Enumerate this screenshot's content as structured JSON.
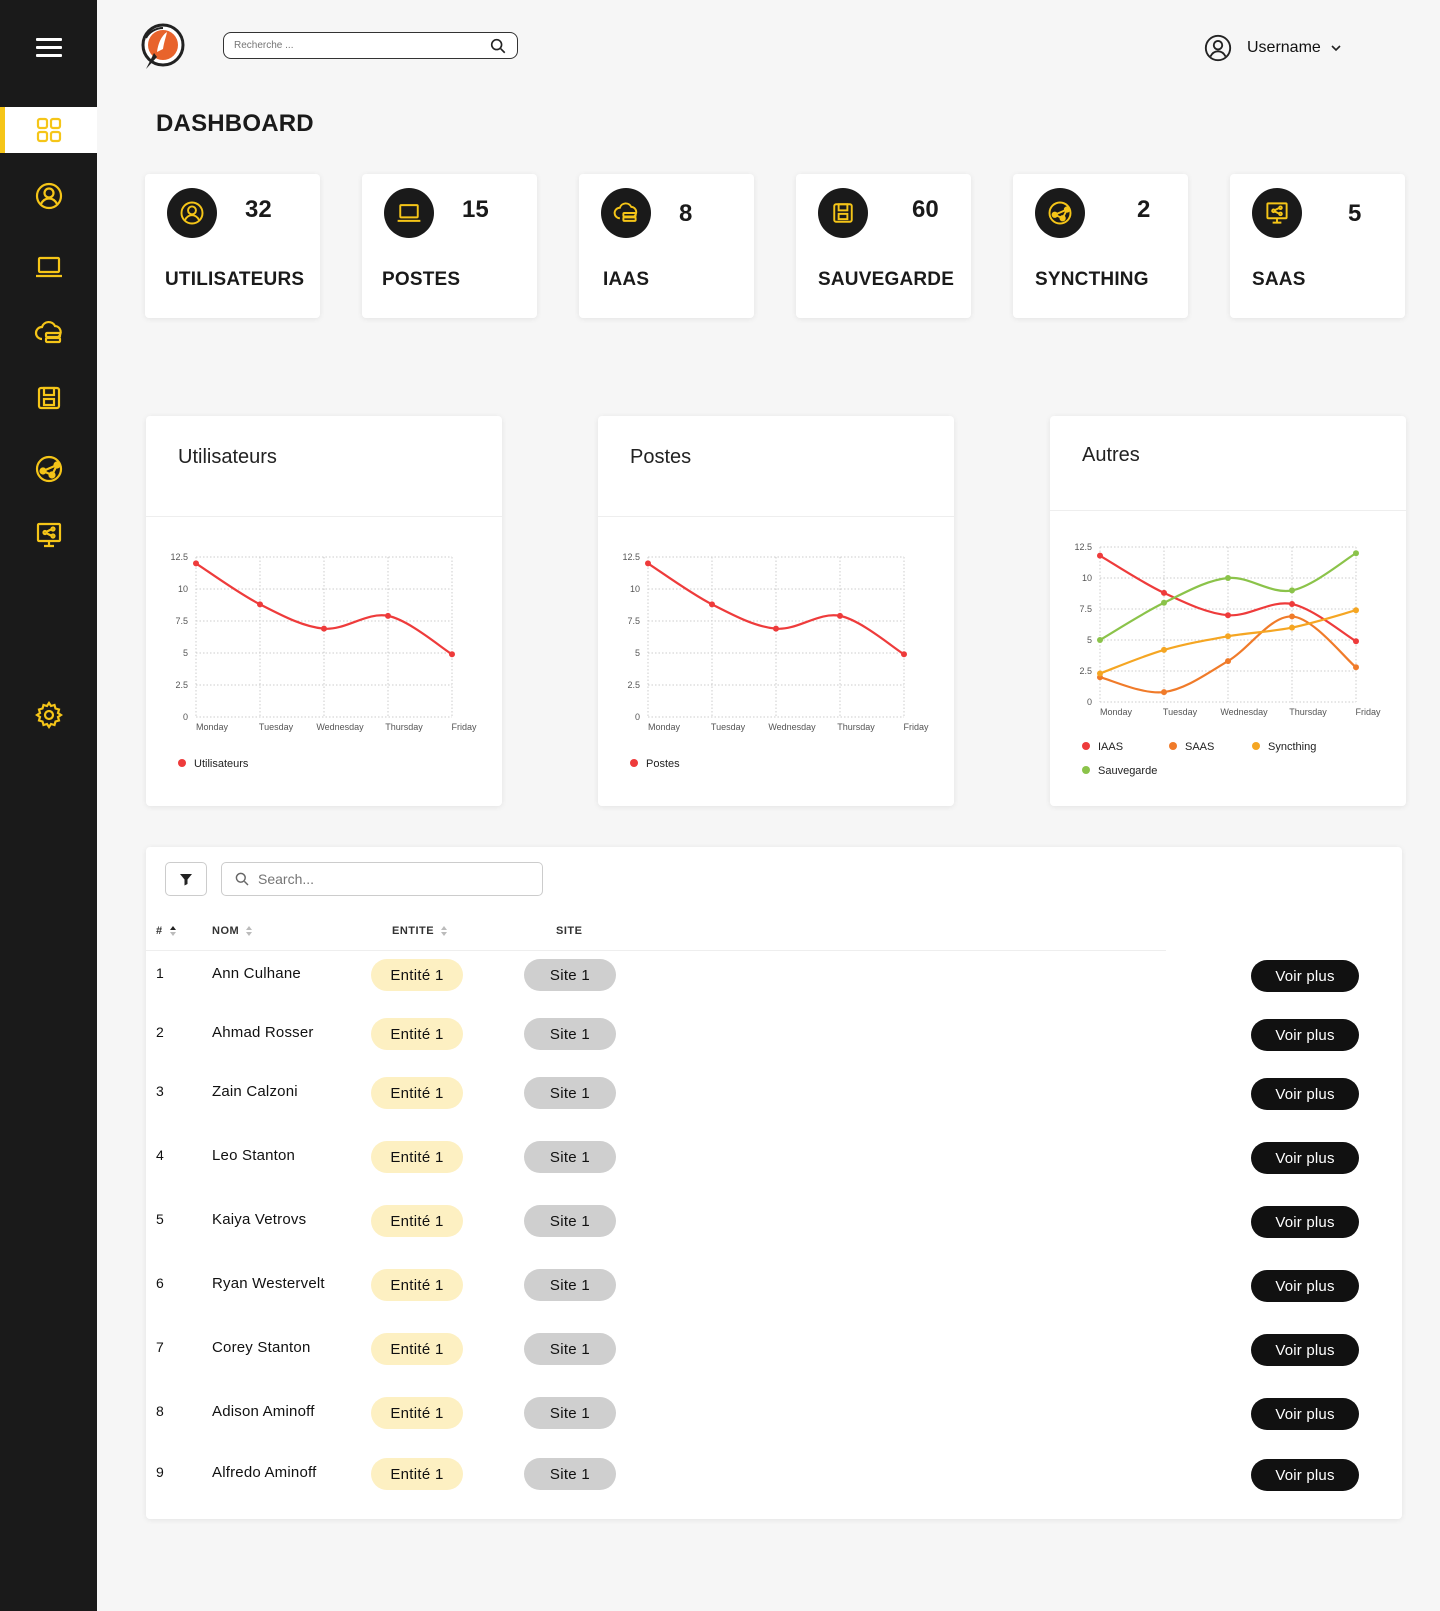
{
  "header": {
    "search_placeholder": "Recherche ...",
    "username": "Username"
  },
  "page_title": "DASHBOARD",
  "stats": [
    {
      "value": "32",
      "label": "UTILISATEURS",
      "icon": "user-circle-icon"
    },
    {
      "value": "15",
      "label": "POSTES",
      "icon": "laptop-icon"
    },
    {
      "value": "8",
      "label": "IAAS",
      "icon": "cloud-server-icon"
    },
    {
      "value": "60",
      "label": "SAUVEGARDE",
      "icon": "save-icon"
    },
    {
      "value": "2",
      "label": "SYNCTHING",
      "icon": "syncthing-icon"
    },
    {
      "value": "5",
      "label": "SAAS",
      "icon": "screen-share-icon"
    }
  ],
  "charts": {
    "utilisateurs_title": "Utilisateurs",
    "postes_title": "Postes",
    "autres_title": "Autres"
  },
  "chart_data": [
    {
      "type": "line",
      "title": "Utilisateurs",
      "categories": [
        "Monday",
        "Tuesday",
        "Wednesday",
        "Thursday",
        "Friday"
      ],
      "series": [
        {
          "name": "Utilisateurs",
          "values": [
            12,
            8.8,
            6.9,
            7.9,
            4.9
          ],
          "color": "#ee3b3b"
        }
      ],
      "ylim": [
        0,
        12.5
      ],
      "yticks": [
        "0",
        "2.5",
        "5",
        "7.5",
        "10",
        "12.5"
      ],
      "grid": true,
      "legend": "bottom-left"
    },
    {
      "type": "line",
      "title": "Postes",
      "categories": [
        "Monday",
        "Tuesday",
        "Wednesday",
        "Thursday",
        "Friday"
      ],
      "series": [
        {
          "name": "Postes",
          "values": [
            12,
            8.8,
            6.9,
            7.9,
            4.9
          ],
          "color": "#ee3b3b"
        }
      ],
      "ylim": [
        0,
        12.5
      ],
      "yticks": [
        "0",
        "2.5",
        "5",
        "7.5",
        "10",
        "12.5"
      ],
      "grid": true,
      "legend": "bottom-left"
    },
    {
      "type": "line",
      "title": "Autres",
      "categories": [
        "Monday",
        "Tuesday",
        "Wednesday",
        "Thursday",
        "Friday"
      ],
      "series": [
        {
          "name": "IAAS",
          "values": [
            11.8,
            8.8,
            7,
            7.9,
            4.9
          ],
          "color": "#ee3b3b"
        },
        {
          "name": "SAAS",
          "values": [
            2,
            0.8,
            3.3,
            6.9,
            2.8
          ],
          "color": "#f07b2a"
        },
        {
          "name": "Syncthing",
          "values": [
            2.3,
            4.2,
            5.3,
            6,
            7.4
          ],
          "color": "#f5a623"
        },
        {
          "name": "Sauvegarde",
          "values": [
            5,
            8,
            10,
            9,
            12
          ],
          "color": "#8bc34a"
        }
      ],
      "ylim": [
        0,
        12.5
      ],
      "yticks": [
        "0",
        "2.5",
        "5",
        "7.5",
        "10",
        "12.5"
      ],
      "grid": true,
      "legend": "bottom-left"
    }
  ],
  "table": {
    "search_placeholder": "Search...",
    "headers": {
      "idx": "#",
      "nom": "NOM",
      "entite": "ENTITE",
      "site": "SITE"
    },
    "rows": [
      {
        "idx": "1",
        "nom": "Ann Culhane",
        "entite": "Entité 1",
        "site": "Site 1",
        "action": "Voir plus"
      },
      {
        "idx": "2",
        "nom": "Ahmad Rosser",
        "entite": "Entité 1",
        "site": "Site 1",
        "action": "Voir plus"
      },
      {
        "idx": "3",
        "nom": "Zain Calzoni",
        "entite": "Entité 1",
        "site": "Site 1",
        "action": "Voir plus"
      },
      {
        "idx": "4",
        "nom": "Leo Stanton",
        "entite": "Entité 1",
        "site": "Site 1",
        "action": "Voir plus"
      },
      {
        "idx": "5",
        "nom": "Kaiya Vetrovs",
        "entite": "Entité 1",
        "site": "Site 1",
        "action": "Voir plus"
      },
      {
        "idx": "6",
        "nom": "Ryan Westervelt",
        "entite": "Entité 1",
        "site": "Site 1",
        "action": "Voir plus"
      },
      {
        "idx": "7",
        "nom": "Corey Stanton",
        "entite": "Entité 1",
        "site": "Site 1",
        "action": "Voir plus"
      },
      {
        "idx": "8",
        "nom": "Adison Aminoff",
        "entite": "Entité 1",
        "site": "Site 1",
        "action": "Voir plus"
      },
      {
        "idx": "9",
        "nom": "Alfredo Aminoff",
        "entite": "Entité 1",
        "site": "Site 1",
        "action": "Voir plus"
      }
    ]
  },
  "colors": {
    "accent": "#f5c518",
    "sidebar": "#1a1a1a"
  }
}
